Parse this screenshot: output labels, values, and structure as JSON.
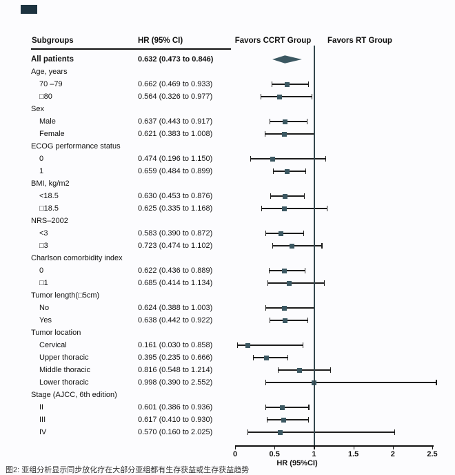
{
  "header": {
    "col_subgroups": "Subgroups",
    "col_hr": "HR (95% CI)",
    "favors_left": "Favors CCRT Group",
    "favors_right": "Favors RT Group"
  },
  "caption": "图2: 亚组分析显示同步放化疗在大部分亚组都有生存获益或生存获益趋势",
  "colors": {
    "marker": "#3c5862",
    "diamond": "#3c5862",
    "ci_line": "#1c1c1c",
    "reference_line": "#33464d"
  },
  "chart_data": {
    "type": "scatter",
    "variant": "forest-plot",
    "x_axis": {
      "min": 0,
      "max": 2.5,
      "ticks": [
        0,
        0.5,
        1,
        1.5,
        2,
        2.5
      ],
      "tick_labels": [
        "0",
        "0.5",
        "1",
        "1.5",
        "2",
        "2.5"
      ],
      "label": "HR (95%CI)"
    },
    "reference_line": 1,
    "rows": [
      {
        "label": "All patients",
        "type": "summary",
        "est": 0.632,
        "lo": 0.473,
        "hi": 0.846,
        "ci_text": "0.632 (0.473 to 0.846)"
      },
      {
        "label": "Age, years",
        "type": "group"
      },
      {
        "label": "70 –79",
        "type": "item",
        "est": 0.662,
        "lo": 0.469,
        "hi": 0.933,
        "ci_text": "0.662 (0.469 to 0.933)"
      },
      {
        "label": "□80",
        "type": "item",
        "est": 0.564,
        "lo": 0.326,
        "hi": 0.977,
        "ci_text": "0.564 (0.326 to 0.977)"
      },
      {
        "label": "Sex",
        "type": "group"
      },
      {
        "label": "Male",
        "type": "item",
        "est": 0.637,
        "lo": 0.443,
        "hi": 0.917,
        "ci_text": "0.637 (0.443 to 0.917)"
      },
      {
        "label": "Female",
        "type": "item",
        "est": 0.621,
        "lo": 0.383,
        "hi": 1.008,
        "ci_text": "0.621 (0.383 to 1.008)"
      },
      {
        "label": "ECOG performance status",
        "type": "group"
      },
      {
        "label": "0",
        "type": "item",
        "est": 0.474,
        "lo": 0.196,
        "hi": 1.15,
        "ci_text": "0.474 (0.196 to 1.150)"
      },
      {
        "label": "1",
        "type": "item",
        "est": 0.659,
        "lo": 0.484,
        "hi": 0.899,
        "ci_text": "0.659 (0.484 to 0.899)"
      },
      {
        "label": "BMI, kg/m2",
        "type": "group"
      },
      {
        "label": "<18.5",
        "type": "item",
        "est": 0.63,
        "lo": 0.453,
        "hi": 0.876,
        "ci_text": "0.630 (0.453 to 0.876)"
      },
      {
        "label": "□18.5",
        "type": "item",
        "est": 0.625,
        "lo": 0.335,
        "hi": 1.168,
        "ci_text": "0.625 (0.335 to 1.168)"
      },
      {
        "label": "NRS–2002",
        "type": "group"
      },
      {
        "label": "<3",
        "type": "item",
        "est": 0.583,
        "lo": 0.39,
        "hi": 0.872,
        "ci_text": "0.583 (0.390 to 0.872)"
      },
      {
        "label": "□3",
        "type": "item",
        "est": 0.723,
        "lo": 0.474,
        "hi": 1.102,
        "ci_text": "0.723 (0.474 to 1.102)"
      },
      {
        "label": "Charlson comorbidity index",
        "type": "group"
      },
      {
        "label": "0",
        "type": "item",
        "est": 0.622,
        "lo": 0.436,
        "hi": 0.889,
        "ci_text": "0.622 (0.436 to 0.889)"
      },
      {
        "label": "□1",
        "type": "item",
        "est": 0.685,
        "lo": 0.414,
        "hi": 1.134,
        "ci_text": "0.685 (0.414 to 1.134)"
      },
      {
        "label": "Tumor length(□5cm)",
        "type": "group"
      },
      {
        "label": "No",
        "type": "item",
        "est": 0.624,
        "lo": 0.388,
        "hi": 1.003,
        "ci_text": "0.624 (0.388 to 1.003)"
      },
      {
        "label": "Yes",
        "type": "item",
        "est": 0.638,
        "lo": 0.442,
        "hi": 0.922,
        "ci_text": "0.638 (0.442 to 0.922)"
      },
      {
        "label": "Tumor location",
        "type": "group"
      },
      {
        "label": "Cervical",
        "type": "item",
        "est": 0.161,
        "lo": 0.03,
        "hi": 0.858,
        "ci_text": "0.161 (0.030 to 0.858)"
      },
      {
        "label": "Upper thoracic",
        "type": "item",
        "est": 0.395,
        "lo": 0.235,
        "hi": 0.666,
        "ci_text": "0.395 (0.235 to 0.666)"
      },
      {
        "label": "Middle thoracic",
        "type": "item",
        "est": 0.816,
        "lo": 0.548,
        "hi": 1.214,
        "ci_text": "0.816 (0.548 to 1.214)"
      },
      {
        "label": "Lower thoracic",
        "type": "item",
        "est": 0.998,
        "lo": 0.39,
        "hi": 2.552,
        "ci_text": "0.998 (0.390 to 2.552)"
      },
      {
        "label": "Stage (AJCC, 6th edition)",
        "type": "group"
      },
      {
        "label": "II",
        "type": "item",
        "est": 0.601,
        "lo": 0.386,
        "hi": 0.936,
        "ci_text": "0.601 (0.386 to 0.936)"
      },
      {
        "label": "III",
        "type": "item",
        "est": 0.617,
        "lo": 0.41,
        "hi": 0.93,
        "ci_text": "0.617 (0.410 to 0.930)"
      },
      {
        "label": "IV",
        "type": "item",
        "est": 0.57,
        "lo": 0.16,
        "hi": 2.025,
        "ci_text": "0.570 (0.160 to 2.025)"
      }
    ]
  }
}
